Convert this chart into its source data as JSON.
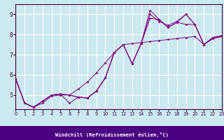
{
  "xlabel": "Windchill (Refroidissement éolien,°C)",
  "xlim": [
    0,
    23
  ],
  "ylim": [
    4.3,
    9.5
  ],
  "yticks": [
    5,
    6,
    7,
    8,
    9
  ],
  "xticks": [
    0,
    1,
    2,
    3,
    4,
    5,
    6,
    7,
    8,
    9,
    10,
    11,
    12,
    13,
    14,
    15,
    16,
    17,
    18,
    19,
    20,
    21,
    22,
    23
  ],
  "bg_color": "#cce9f0",
  "line_color": "#800080",
  "grid_color": "#ffffff",
  "lines": [
    {
      "x": [
        0,
        1,
        2,
        3,
        4,
        5,
        6,
        7,
        8,
        9,
        10,
        11,
        12,
        13,
        14,
        15,
        16,
        17,
        18,
        19,
        20,
        21,
        22,
        23
      ],
      "y": [
        5.8,
        4.6,
        4.4,
        4.7,
        5.0,
        5.05,
        5.0,
        4.9,
        4.85,
        5.2,
        5.85,
        7.1,
        7.5,
        6.55,
        7.55,
        9.2,
        8.75,
        8.35,
        8.6,
        9.0,
        8.5,
        7.5,
        7.8,
        7.9
      ]
    },
    {
      "x": [
        0,
        1,
        2,
        3,
        4,
        5,
        6,
        7,
        8,
        9,
        10,
        11,
        12,
        13,
        14,
        15,
        16,
        17,
        18,
        19,
        20,
        21,
        22,
        23
      ],
      "y": [
        5.8,
        4.6,
        4.4,
        4.7,
        5.0,
        5.05,
        4.6,
        4.9,
        4.85,
        5.2,
        5.85,
        7.1,
        7.5,
        6.55,
        7.55,
        8.8,
        8.75,
        8.35,
        8.6,
        8.5,
        8.5,
        7.5,
        7.8,
        7.9
      ]
    },
    {
      "x": [
        0,
        1,
        2,
        3,
        4,
        5,
        6,
        7,
        8,
        9,
        10,
        11,
        12,
        13,
        14,
        15,
        16,
        17,
        18,
        19,
        20,
        21,
        22,
        23
      ],
      "y": [
        5.8,
        4.6,
        4.4,
        4.7,
        5.0,
        5.05,
        5.0,
        4.9,
        4.85,
        5.2,
        5.85,
        7.1,
        7.5,
        6.55,
        7.55,
        9.0,
        8.65,
        8.45,
        8.65,
        9.0,
        8.5,
        7.5,
        7.85,
        7.95
      ]
    },
    {
      "x": [
        0,
        1,
        2,
        3,
        4,
        5,
        6,
        7,
        8,
        9,
        10,
        11,
        12,
        13,
        14,
        15,
        16,
        17,
        18,
        19,
        20,
        21,
        22,
        23
      ],
      "y": [
        5.8,
        4.6,
        4.4,
        4.6,
        4.95,
        5.0,
        5.0,
        5.3,
        5.65,
        6.1,
        6.6,
        7.1,
        7.5,
        7.55,
        7.6,
        7.65,
        7.7,
        7.75,
        7.8,
        7.85,
        7.9,
        7.5,
        7.85,
        7.95
      ]
    }
  ]
}
